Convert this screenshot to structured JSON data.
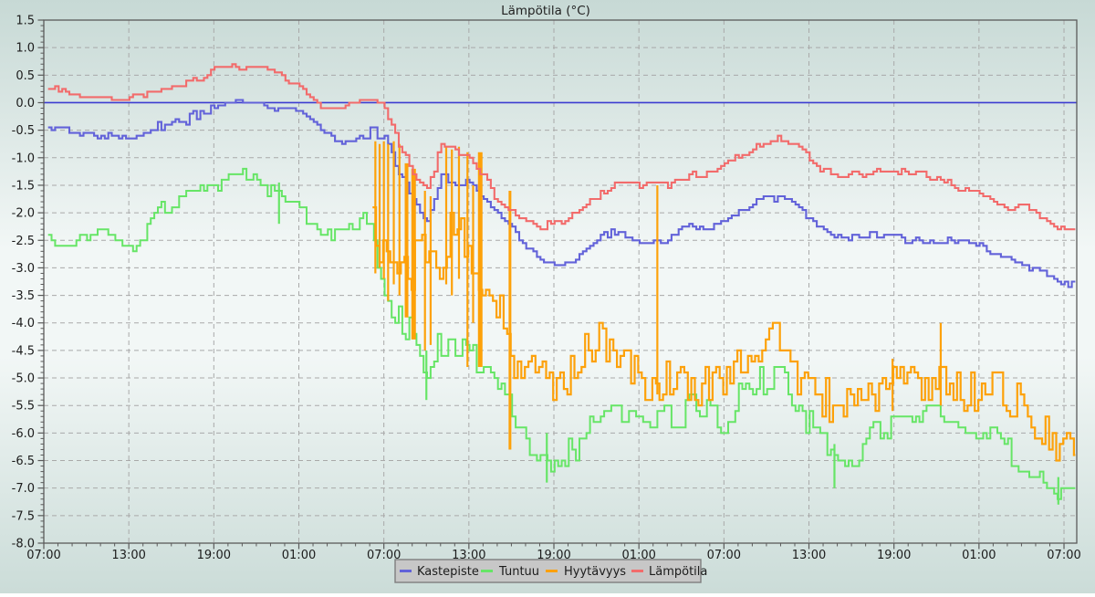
{
  "page": {
    "title": "Lämpötila (°C)"
  },
  "chart_data": {
    "type": "line",
    "title": "Lämpötila (°C)",
    "x_axis": {
      "tick_labels": [
        "07:00",
        "13:00",
        "19:00",
        "01:00",
        "07:00",
        "13:00",
        "19:00",
        "01:00",
        "07:00",
        "13:00",
        "19:00",
        "01:00",
        "07:00"
      ],
      "major_tick_hours": 6,
      "minor_tick_hours": 1,
      "domain_hours": [
        0,
        72.9
      ]
    },
    "y_axis": {
      "min": -8.0,
      "max": 1.5,
      "major_step": 0.5,
      "minor_step": 0.1,
      "tick_labels": [
        "1.5",
        "1.0",
        "0.5",
        "0.0",
        "-0.5",
        "-1.0",
        "-1.5",
        "-2.0",
        "-2.5",
        "-3.0",
        "-3.5",
        "-4.0",
        "-4.5",
        "-5.0",
        "-5.5",
        "-6.0",
        "-6.5",
        "-7.0",
        "-7.5",
        "-8.0"
      ]
    },
    "zero_line_value": 0.0,
    "grid": true,
    "legend_position": "bottom-center",
    "colors": {
      "kastepiste": "#6262d9",
      "tuntuu": "#66e566",
      "hyytavyys": "#fda109",
      "lampotila": "#f26b6b",
      "zero_line": "#3c3cd0",
      "gridline": "#a9a9a9",
      "frame": "#5a5a5a",
      "text": "#1c1c1c",
      "legend_bg": "#c7c7c7",
      "legend_border": "#7e7e7e",
      "bg_top": "#c7d9d5",
      "bg_mid": "#f2f7f6",
      "bg_bottom": "#cbdcd8"
    },
    "series": [
      {
        "name": "Kastepiste",
        "color": "#6262d9",
        "width": 2.1,
        "quantize": 0.05,
        "seed": 22,
        "start_hour": 0.3,
        "base_hour": 0,
        "hourly_values": [
          -0.45,
          -0.45,
          -0.5,
          -0.6,
          -0.6,
          -0.6,
          -0.6,
          -0.55,
          -0.45,
          -0.35,
          -0.3,
          -0.2,
          -0.1,
          0,
          0,
          0,
          -0.1,
          -0.15,
          -0.15,
          -0.35,
          -0.6,
          -0.8,
          -0.7,
          -0.55,
          -0.6,
          -1.2,
          -1.7,
          -2.1,
          -1.35,
          -1.4,
          -1.45,
          -1.8,
          -2.05,
          -2.3,
          -2.6,
          -2.85,
          -2.9,
          -2.9,
          -2.75,
          -2.5,
          -2.35,
          -2.4,
          -2.5,
          -2.5,
          -2.5,
          -2.2,
          -2.3,
          -2.3,
          -2.2,
          -2,
          -1.85,
          -1.75,
          -1.7,
          -1.85,
          -2.1,
          -2.3,
          -2.45,
          -2.45,
          -2.4,
          -2.45,
          -2.45,
          -2.5,
          -2.5,
          -2.5,
          -2.5,
          -2.55,
          -2.6,
          -2.75,
          -2.8,
          -2.9,
          -3.05,
          -3.15,
          -3.3
        ],
        "noise_segments": [
          [
            0,
            8,
            0.05
          ],
          [
            8,
            12,
            0.1
          ],
          [
            12,
            19,
            0.04
          ],
          [
            19,
            23,
            0.07
          ],
          [
            23,
            31,
            0.1
          ],
          [
            31,
            73,
            0.06
          ]
        ],
        "spikes": []
      },
      {
        "name": "Tuntuu",
        "color": "#66e566",
        "width": 2.0,
        "quantize": 0.1,
        "seed": 33,
        "start_hour": 0.3,
        "base_hour": 0,
        "hourly_values": [
          -2.5,
          -2.55,
          -2.7,
          -2.4,
          -2.3,
          -2.5,
          -2.75,
          -2.5,
          -2,
          -1.9,
          -1.7,
          -1.6,
          -1.5,
          -1.4,
          -1.35,
          -1.4,
          -1.6,
          -1.7,
          -2,
          -2.15,
          -2.4,
          -2.4,
          -2.2,
          -2.1,
          -3.3,
          -3.9,
          -4.2,
          -4.9,
          -4.4,
          -4.35,
          -4.5,
          -4.8,
          -5.1,
          -5.6,
          -6.1,
          -6.5,
          -6.6,
          -6.3,
          -6.2,
          -5.8,
          -5.5,
          -5.5,
          -5.8,
          -5.9,
          -5.7,
          -5.6,
          -5.5,
          -5.7,
          -5.9,
          -5.4,
          -5.2,
          -5,
          -4.95,
          -5.4,
          -5.8,
          -6,
          -6.4,
          -6.7,
          -6.1,
          -6,
          -5.9,
          -5.9,
          -5.8,
          -5.6,
          -5.7,
          -5.9,
          -6,
          -6.1,
          -6.3,
          -6.5,
          -6.6,
          -7,
          -7.1
        ],
        "noise_segments": [
          [
            0,
            8,
            0.15
          ],
          [
            8,
            23,
            0.12
          ],
          [
            23,
            33,
            0.28
          ],
          [
            33,
            41,
            0.3
          ],
          [
            41,
            58,
            0.28
          ],
          [
            58,
            73,
            0.24
          ]
        ],
        "spikes": [
          {
            "t": 16.6,
            "top": -1.45,
            "bot": -2.2
          },
          {
            "t": 27.0,
            "top": -4.5,
            "bot": -5.4
          },
          {
            "t": 35.5,
            "top": -6.0,
            "bot": -6.9
          },
          {
            "t": 55.8,
            "top": -6.2,
            "bot": -7.0
          },
          {
            "t": 71.6,
            "top": -6.8,
            "bot": -7.3
          }
        ]
      },
      {
        "name": "Hyytävyys",
        "color": "#fda109",
        "width": 2.2,
        "quantize": 0.1,
        "seed": 44,
        "start_hour": 23.2,
        "base_hour": 23,
        "jitter_every_step": true,
        "hourly_values": [
          -2,
          -2.8,
          -3,
          -3,
          -2.5,
          -3.2,
          -2,
          -3,
          -3.3,
          -3.5,
          -4.6,
          -5,
          -4.8,
          -5.2,
          -5,
          -4.5,
          -4.3,
          -4.6,
          -4.7,
          -5,
          -5.2,
          -5,
          -5.1,
          -5.3,
          -5,
          -5,
          -4.7,
          -4.5,
          -4.3,
          -4.3,
          -5,
          -5.2,
          -5.4,
          -5.5,
          -5.3,
          -5.4,
          -5.2,
          -5,
          -5.1,
          -5.2,
          -4.9,
          -5.2,
          -5.3,
          -5.2,
          -5.1,
          -5.3,
          -5.5,
          -5.9,
          -6.2,
          -6.3
        ],
        "noise_segments": [
          [
            23,
            33,
            0.4
          ],
          [
            33,
            73,
            0.38
          ]
        ],
        "spikes": [
          {
            "t": 23.4,
            "top": -0.7,
            "bot": -3.1
          },
          {
            "t": 23.7,
            "top": -0.75,
            "bot": -3.0
          },
          {
            "t": 24.0,
            "top": -0.7,
            "bot": -3.2
          },
          {
            "t": 24.3,
            "top": -0.75,
            "bot": -3.6
          },
          {
            "t": 24.7,
            "top": -0.7,
            "bot": -3.3
          },
          {
            "t": 25.1,
            "top": -0.75,
            "bot": -3.5
          },
          {
            "t": 25.6,
            "top": -1.1,
            "bot": -3.9,
            "w": 4
          },
          {
            "t": 26.1,
            "top": -1.2,
            "bot": -4.3,
            "w": 5
          },
          {
            "t": 26.9,
            "top": -1.6,
            "bot": -4.5
          },
          {
            "t": 27.3,
            "top": -1.7,
            "bot": -4.4
          },
          {
            "t": 28.4,
            "top": -0.8,
            "bot": -3.3
          },
          {
            "t": 28.8,
            "top": -0.85,
            "bot": -3.5
          },
          {
            "t": 29.3,
            "top": -0.8,
            "bot": -3.2
          },
          {
            "t": 29.9,
            "top": -0.9,
            "bot": -4.8
          },
          {
            "t": 30.3,
            "top": -1.5,
            "bot": -4.0
          },
          {
            "t": 30.8,
            "top": -0.9,
            "bot": -4.8,
            "w": 5
          },
          {
            "t": 32.9,
            "top": -1.6,
            "bot": -6.3,
            "w": 3
          },
          {
            "t": 43.3,
            "top": -1.5,
            "bot": -5.3
          },
          {
            "t": 59.9,
            "top": -4.65,
            "bot": -5.6
          },
          {
            "t": 63.3,
            "top": -4.0,
            "bot": -5.5
          }
        ]
      },
      {
        "name": "Lämpötila",
        "color": "#f26b6b",
        "width": 2.1,
        "quantize": 0.05,
        "seed": 11,
        "start_hour": 0.3,
        "base_hour": 0,
        "hourly_values": [
          0.25,
          0.25,
          0.15,
          0.1,
          0.1,
          0.1,
          0.1,
          0.15,
          0.2,
          0.3,
          0.35,
          0.45,
          0.6,
          0.65,
          0.65,
          0.65,
          0.6,
          0.45,
          0.3,
          0.05,
          -0.15,
          -0.1,
          0.05,
          0.1,
          0,
          -0.7,
          -1.25,
          -1.6,
          -0.8,
          -0.85,
          -0.9,
          -1.3,
          -1.8,
          -2,
          -2.2,
          -2.25,
          -2.2,
          -2.1,
          -1.9,
          -1.7,
          -1.5,
          -1.5,
          -1.5,
          -1.5,
          -1.5,
          -1.4,
          -1.3,
          -1.25,
          -1.1,
          -1,
          -0.85,
          -0.7,
          -0.65,
          -0.8,
          -1,
          -1.25,
          -1.3,
          -1.3,
          -1.3,
          -1.2,
          -1.25,
          -1.3,
          -1.3,
          -1.35,
          -1.5,
          -1.55,
          -1.65,
          -1.75,
          -1.9,
          -1.9,
          -2,
          -2.15,
          -2.3
        ],
        "noise_segments": [
          [
            0,
            23,
            0.05
          ],
          [
            23,
            31,
            0.1
          ],
          [
            31,
            73,
            0.06
          ]
        ],
        "spikes": []
      }
    ],
    "legend": {
      "labels": [
        "Kastepiste",
        "Tuntuu",
        "Hyytävyys",
        "Lämpötila"
      ]
    }
  }
}
